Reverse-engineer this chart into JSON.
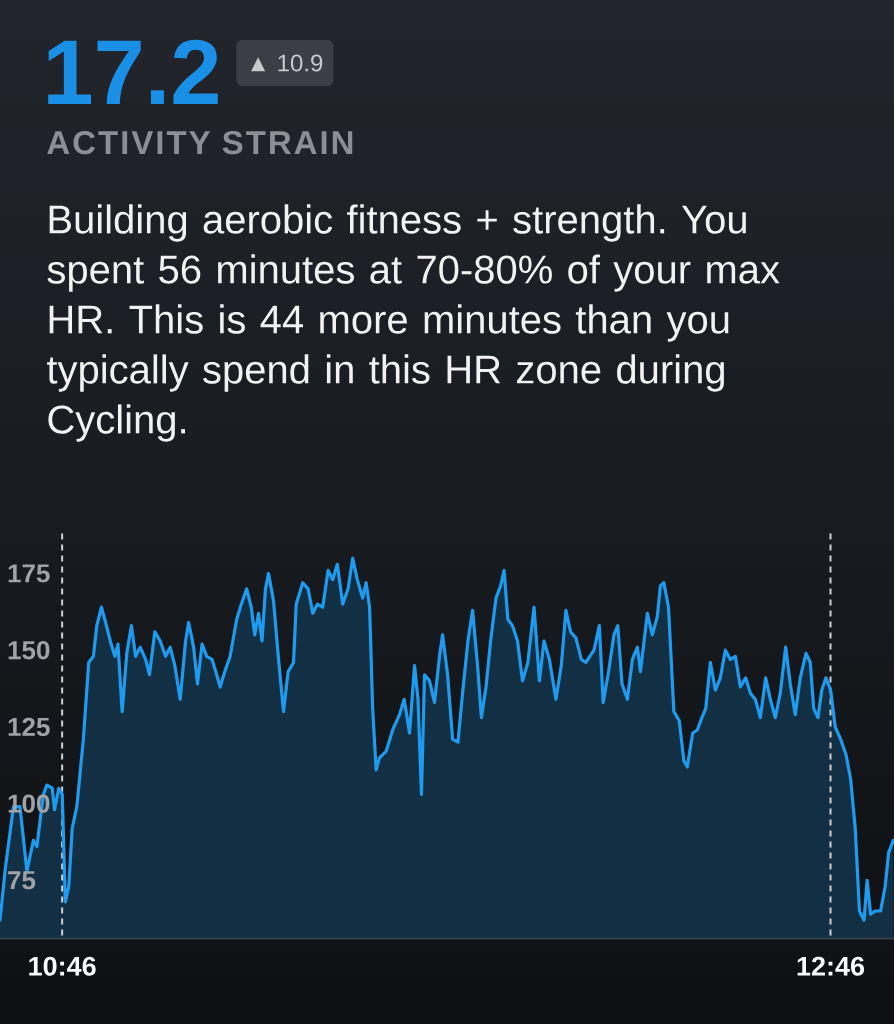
{
  "chart_data": {
    "type": "area",
    "title": "17.2",
    "subtitle": "ACTIVITY STRAIN",
    "annotations": [
      "▲ 10.9",
      "Building aerobic fitness + strength. You spent 56 minutes at 70-80% of your max HR. This is 44 more minutes than you typically spend in this HR zone during Cycling."
    ],
    "color": "#1e9bef",
    "x": [
      10.605,
      10.619,
      10.64,
      10.657,
      10.675,
      10.692,
      10.701,
      10.718,
      10.727,
      10.741,
      10.747,
      10.758,
      10.767,
      10.775,
      10.784,
      10.793,
      10.805,
      10.822,
      10.836,
      10.848,
      10.857,
      10.869,
      10.88,
      10.892,
      10.904,
      10.912,
      10.923,
      10.935,
      10.947,
      10.958,
      10.97,
      10.984,
      10.994,
      11.008,
      11.022,
      11.036,
      11.048,
      11.06,
      11.074,
      11.088,
      11.096,
      11.109,
      11.119,
      11.131,
      11.143,
      11.157,
      11.169,
      11.178,
      11.19,
      11.204,
      11.221,
      11.233,
      11.247,
      11.259,
      11.268,
      11.278,
      11.287,
      11.296,
      11.304,
      11.317,
      11.33,
      11.343,
      11.355,
      11.369,
      11.376,
      11.393,
      11.407,
      11.419,
      11.431,
      11.445,
      11.459,
      11.471,
      11.483,
      11.497,
      11.511,
      11.523,
      11.535,
      11.549,
      11.558,
      11.567,
      11.575,
      11.584,
      11.593,
      11.61,
      11.627,
      11.645,
      11.657,
      11.671,
      11.684,
      11.693,
      11.702,
      11.71,
      11.723,
      11.736,
      11.749,
      11.757,
      11.77,
      11.783,
      11.797,
      11.809,
      11.823,
      11.835,
      11.848,
      11.858,
      11.87,
      11.882,
      11.896,
      11.908,
      11.917,
      11.927,
      11.939,
      11.952,
      11.965,
      11.979,
      11.995,
      12.009,
      12.021,
      12.035,
      12.052,
      12.066,
      12.078,
      12.09,
      12.104,
      12.118,
      12.13,
      12.151,
      12.165,
      12.175,
      12.189,
      12.203,
      12.213,
      12.224,
      12.238,
      12.251,
      12.264,
      12.272,
      12.29,
      12.303,
      12.316,
      12.324,
      12.333,
      12.345,
      12.359,
      12.373,
      12.385,
      12.394,
      12.408,
      12.42,
      12.432,
      12.442,
      12.454,
      12.467,
      12.48,
      12.493,
      12.506,
      12.519,
      12.532,
      12.546,
      12.558,
      12.571,
      12.584,
      12.598,
      12.61,
      12.623,
      12.636,
      12.65,
      12.662,
      12.675,
      12.688,
      12.703,
      12.714,
      12.723,
      12.734,
      12.744,
      12.755,
      12.767,
      12.779,
      12.793,
      12.807,
      12.819,
      12.831,
      12.842,
      12.854,
      12.862,
      12.871,
      12.883,
      12.897,
      12.909,
      12.918,
      12.93
    ],
    "values": [
      62,
      79,
      99,
      99,
      78,
      88,
      86,
      103,
      106,
      105,
      98,
      105,
      103,
      68,
      73,
      92,
      99,
      121,
      146,
      148,
      158,
      164,
      159,
      153,
      148,
      152,
      130,
      149,
      158,
      148,
      151,
      147,
      142,
      156,
      153,
      148,
      151,
      145,
      134,
      153,
      159,
      151,
      139,
      152,
      148,
      147,
      142,
      138,
      143,
      148,
      160,
      165,
      170,
      164,
      155,
      162,
      153,
      170,
      175,
      166,
      147,
      130,
      143,
      146,
      165,
      172,
      170,
      162,
      165,
      164,
      176,
      173,
      178,
      165,
      170,
      180,
      173,
      167,
      172,
      164,
      131,
      111,
      115,
      117,
      124,
      129,
      134,
      123,
      145,
      134,
      103,
      142,
      140,
      133,
      148,
      155,
      142,
      121,
      120,
      136,
      153,
      163,
      145,
      128,
      138,
      153,
      167,
      171,
      176,
      160,
      158,
      153,
      140,
      146,
      164,
      140,
      153,
      147,
      134,
      145,
      163,
      156,
      154,
      147,
      146,
      150,
      158,
      133,
      143,
      155,
      158,
      139,
      134,
      147,
      151,
      143,
      162,
      155,
      161,
      171,
      172,
      164,
      130,
      127,
      114,
      112,
      123,
      124,
      128,
      131,
      146,
      137,
      141,
      150,
      147,
      148,
      138,
      141,
      136,
      134,
      128,
      141,
      134,
      128,
      136,
      151,
      139,
      129,
      141,
      149,
      146,
      131,
      128,
      137,
      141,
      137,
      125,
      121,
      116,
      108,
      92,
      65,
      62,
      75,
      64,
      65,
      65,
      73,
      84,
      88
    ],
    "xlim": [
      10.605,
      12.932
    ],
    "ylim": [
      56,
      188
    ],
    "xticks": [
      {
        "value": 10.7667,
        "label": "10:46"
      },
      {
        "value": 12.7667,
        "label": "12:46"
      }
    ],
    "yticks": [
      75,
      100,
      125,
      150,
      175
    ],
    "ref_lines": [
      {
        "axis": "x",
        "value": 10.7667,
        "line_style": "dashed",
        "color": "#cfcfcf"
      },
      {
        "axis": "x",
        "value": 12.7667,
        "line_style": "dashed",
        "color": "#cfcfcf"
      }
    ]
  }
}
